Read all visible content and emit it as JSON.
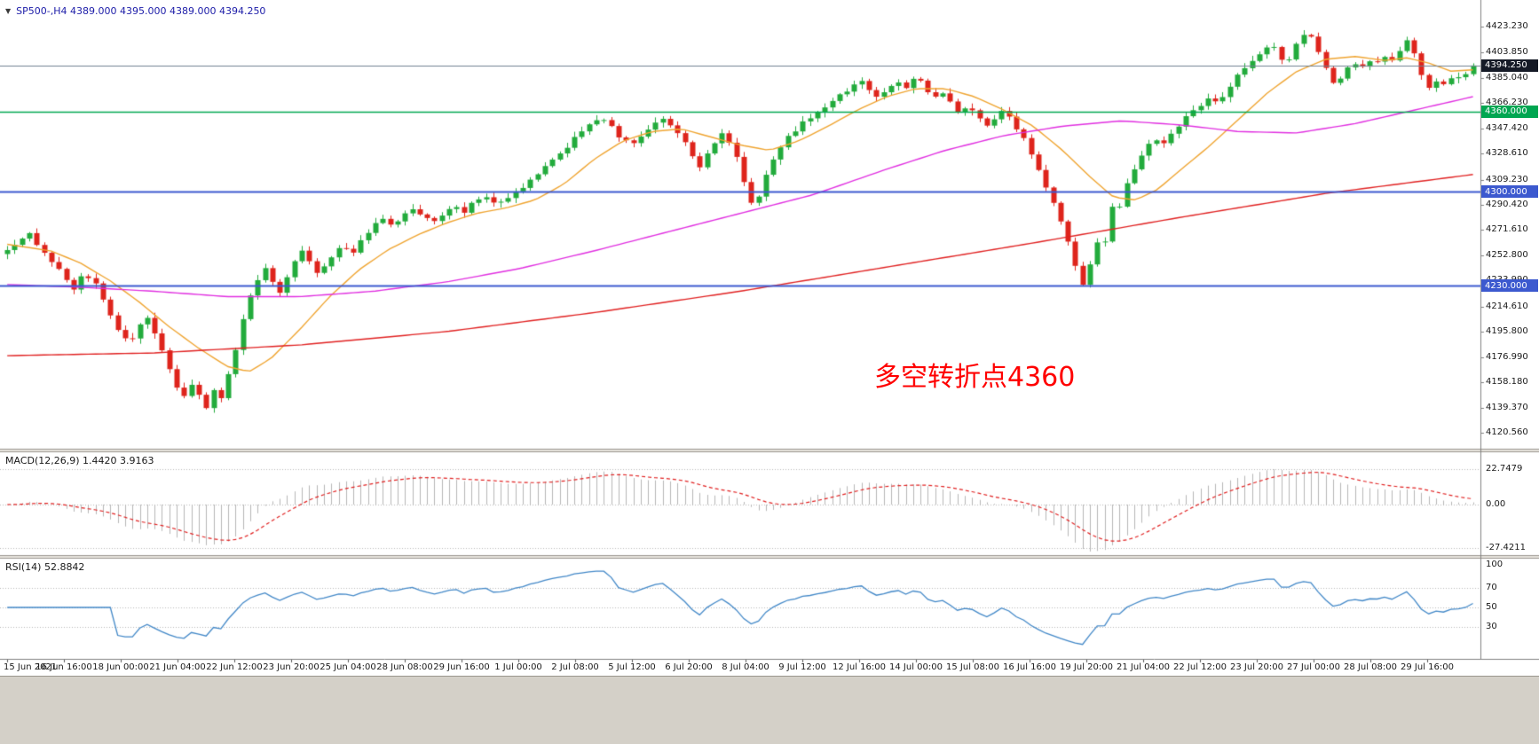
{
  "header": {
    "symbol_info": "SP500-,H4 4389.000 4395.000 4389.000 4394.250",
    "color": "#1c1ca8"
  },
  "annotation": {
    "text": "多空转折点4360",
    "color": "#ff0000"
  },
  "colors": {
    "bottom_bar": "#d4d0c8",
    "axis_text": "#1a1a1a",
    "grid": "#b8b8b8",
    "panel_divider": "#9a968e"
  },
  "chart_data": {
    "type": "candlestick",
    "symbol": "SP500-",
    "timeframe": "H4",
    "last": {
      "o": 4389.0,
      "h": 4395.0,
      "l": 4389.0,
      "c": 4394.25
    },
    "bars": 200,
    "up_color": "#22ab3c",
    "down_color": "#de241c",
    "y_ticks": [
      "4423.230",
      "4403.850",
      "4385.040",
      "4366.230",
      "4347.420",
      "4328.610",
      "4309.230",
      "4290.420",
      "4271.610",
      "4252.800",
      "4233.990",
      "4214.610",
      "4195.800",
      "4176.990",
      "4158.180",
      "4139.370",
      "4120.560"
    ],
    "x_labels": [
      "15 Jun 2021",
      "16 Jun 16:00",
      "18 Jun 00:00",
      "21 Jun 04:00",
      "22 Jun 12:00",
      "23 Jun 20:00",
      "25 Jun 04:00",
      "28 Jun 08:00",
      "29 Jun 16:00",
      "1 Jul 00:00",
      "2 Jul 08:00",
      "5 Jul 12:00",
      "6 Jul 20:00",
      "8 Jul 04:00",
      "9 Jul 12:00",
      "12 Jul 16:00",
      "14 Jul 00:00",
      "15 Jul 08:00",
      "16 Jul 16:00",
      "19 Jul 20:00",
      "21 Jul 04:00",
      "22 Jul 12:00",
      "23 Jul 20:00",
      "27 Jul 00:00",
      "28 Jul 08:00",
      "29 Jul 16:00"
    ],
    "horizontal_lines": [
      {
        "label": "4394.250",
        "value": 4394.25,
        "color": "#708090",
        "width": 1,
        "badge_bg": "#151a26",
        "badge_fg": "#ffffff"
      },
      {
        "label": "4360.000",
        "value": 4360.0,
        "color": "#00a651",
        "width": 1.4,
        "badge_bg": "#00a651",
        "badge_fg": "#ffffff"
      },
      {
        "label": "4300.000",
        "value": 4300.0,
        "color": "#3c59cf",
        "width": 2,
        "badge_bg": "#3c59cf",
        "badge_fg": "#ffffff"
      },
      {
        "label": "4230.000",
        "value": 4230.0,
        "color": "#3c59cf",
        "width": 2,
        "badge_bg": "#3c59cf",
        "badge_fg": "#ffffff"
      }
    ],
    "close_path": [
      [
        0.0,
        4258
      ],
      [
        0.005,
        4260
      ],
      [
        0.015,
        4268
      ],
      [
        0.025,
        4256
      ],
      [
        0.035,
        4242
      ],
      [
        0.045,
        4228
      ],
      [
        0.052,
        4240
      ],
      [
        0.06,
        4231
      ],
      [
        0.068,
        4214
      ],
      [
        0.076,
        4196
      ],
      [
        0.083,
        4188
      ],
      [
        0.089,
        4198
      ],
      [
        0.095,
        4206
      ],
      [
        0.1,
        4196
      ],
      [
        0.105,
        4182
      ],
      [
        0.11,
        4168
      ],
      [
        0.116,
        4154
      ],
      [
        0.121,
        4147
      ],
      [
        0.126,
        4158
      ],
      [
        0.131,
        4148
      ],
      [
        0.136,
        4138
      ],
      [
        0.141,
        4152
      ],
      [
        0.145,
        4142
      ],
      [
        0.15,
        4162
      ],
      [
        0.156,
        4184
      ],
      [
        0.161,
        4206
      ],
      [
        0.166,
        4224
      ],
      [
        0.171,
        4234
      ],
      [
        0.176,
        4242
      ],
      [
        0.181,
        4233
      ],
      [
        0.186,
        4225
      ],
      [
        0.191,
        4238
      ],
      [
        0.196,
        4248
      ],
      [
        0.201,
        4255
      ],
      [
        0.206,
        4247
      ],
      [
        0.211,
        4239
      ],
      [
        0.217,
        4247
      ],
      [
        0.223,
        4255
      ],
      [
        0.228,
        4261
      ],
      [
        0.234,
        4253
      ],
      [
        0.241,
        4263
      ],
      [
        0.248,
        4273
      ],
      [
        0.255,
        4281
      ],
      [
        0.262,
        4275
      ],
      [
        0.269,
        4281
      ],
      [
        0.276,
        4288
      ],
      [
        0.283,
        4282
      ],
      [
        0.29,
        4277
      ],
      [
        0.297,
        4284
      ],
      [
        0.304,
        4290
      ],
      [
        0.311,
        4285
      ],
      [
        0.318,
        4292
      ],
      [
        0.326,
        4296
      ],
      [
        0.335,
        4290
      ],
      [
        0.344,
        4297
      ],
      [
        0.353,
        4305
      ],
      [
        0.362,
        4313
      ],
      [
        0.371,
        4322
      ],
      [
        0.38,
        4332
      ],
      [
        0.389,
        4343
      ],
      [
        0.397,
        4351
      ],
      [
        0.404,
        4356
      ],
      [
        0.411,
        4349
      ],
      [
        0.418,
        4340
      ],
      [
        0.425,
        4335
      ],
      [
        0.432,
        4342
      ],
      [
        0.439,
        4349
      ],
      [
        0.446,
        4354
      ],
      [
        0.453,
        4349
      ],
      [
        0.46,
        4341
      ],
      [
        0.466,
        4329
      ],
      [
        0.471,
        4317
      ],
      [
        0.476,
        4325
      ],
      [
        0.482,
        4336
      ],
      [
        0.488,
        4343
      ],
      [
        0.494,
        4335
      ],
      [
        0.5,
        4318
      ],
      [
        0.505,
        4296
      ],
      [
        0.509,
        4288
      ],
      [
        0.514,
        4302
      ],
      [
        0.52,
        4318
      ],
      [
        0.526,
        4331
      ],
      [
        0.533,
        4341
      ],
      [
        0.54,
        4349
      ],
      [
        0.547,
        4355
      ],
      [
        0.554,
        4361
      ],
      [
        0.561,
        4367
      ],
      [
        0.568,
        4372
      ],
      [
        0.576,
        4378
      ],
      [
        0.583,
        4383
      ],
      [
        0.589,
        4376
      ],
      [
        0.595,
        4369
      ],
      [
        0.601,
        4377
      ],
      [
        0.607,
        4383
      ],
      [
        0.613,
        4377
      ],
      [
        0.62,
        4387
      ],
      [
        0.626,
        4379
      ],
      [
        0.632,
        4369
      ],
      [
        0.638,
        4374
      ],
      [
        0.644,
        4366
      ],
      [
        0.65,
        4357
      ],
      [
        0.656,
        4364
      ],
      [
        0.662,
        4357
      ],
      [
        0.668,
        4349
      ],
      [
        0.674,
        4356
      ],
      [
        0.68,
        4361
      ],
      [
        0.686,
        4352
      ],
      [
        0.692,
        4342
      ],
      [
        0.698,
        4330
      ],
      [
        0.704,
        4316
      ],
      [
        0.71,
        4300
      ],
      [
        0.716,
        4285
      ],
      [
        0.721,
        4270
      ],
      [
        0.726,
        4254
      ],
      [
        0.731,
        4238
      ],
      [
        0.735,
        4229
      ],
      [
        0.739,
        4248
      ],
      [
        0.743,
        4264
      ],
      [
        0.747,
        4252
      ],
      [
        0.751,
        4278
      ],
      [
        0.755,
        4296
      ],
      [
        0.759,
        4288
      ],
      [
        0.764,
        4308
      ],
      [
        0.77,
        4320
      ],
      [
        0.776,
        4331
      ],
      [
        0.782,
        4340
      ],
      [
        0.788,
        4334
      ],
      [
        0.794,
        4344
      ],
      [
        0.8,
        4351
      ],
      [
        0.807,
        4358
      ],
      [
        0.814,
        4365
      ],
      [
        0.82,
        4372
      ],
      [
        0.826,
        4366
      ],
      [
        0.832,
        4377
      ],
      [
        0.838,
        4385
      ],
      [
        0.844,
        4392
      ],
      [
        0.85,
        4398
      ],
      [
        0.856,
        4404
      ],
      [
        0.862,
        4410
      ],
      [
        0.867,
        4404
      ],
      [
        0.872,
        4394
      ],
      [
        0.877,
        4406
      ],
      [
        0.882,
        4414
      ],
      [
        0.887,
        4419
      ],
      [
        0.892,
        4410
      ],
      [
        0.897,
        4398
      ],
      [
        0.902,
        4385
      ],
      [
        0.907,
        4379
      ],
      [
        0.912,
        4391
      ],
      [
        0.918,
        4397
      ],
      [
        0.924,
        4393
      ],
      [
        0.93,
        4399
      ],
      [
        0.936,
        4395
      ],
      [
        0.941,
        4403
      ],
      [
        0.946,
        4397
      ],
      [
        0.951,
        4406
      ],
      [
        0.956,
        4417
      ],
      [
        0.961,
        4399
      ],
      [
        0.966,
        4383
      ],
      [
        0.971,
        4375
      ],
      [
        0.976,
        4384
      ],
      [
        0.981,
        4379
      ],
      [
        0.986,
        4387
      ],
      [
        0.991,
        4385
      ],
      [
        0.996,
        4390
      ],
      [
        1.0,
        4394.25
      ]
    ],
    "moving_averages": [
      {
        "name": "ma-fast-orange",
        "color": "#efa430",
        "path": [
          [
            0,
            4261
          ],
          [
            0.03,
            4256
          ],
          [
            0.05,
            4247
          ],
          [
            0.07,
            4234
          ],
          [
            0.09,
            4218
          ],
          [
            0.11,
            4200
          ],
          [
            0.13,
            4184
          ],
          [
            0.15,
            4170
          ],
          [
            0.165,
            4166
          ],
          [
            0.18,
            4176
          ],
          [
            0.2,
            4198
          ],
          [
            0.22,
            4222
          ],
          [
            0.24,
            4242
          ],
          [
            0.26,
            4257
          ],
          [
            0.28,
            4268
          ],
          [
            0.3,
            4277
          ],
          [
            0.32,
            4284
          ],
          [
            0.34,
            4288
          ],
          [
            0.36,
            4294
          ],
          [
            0.38,
            4306
          ],
          [
            0.4,
            4324
          ],
          [
            0.42,
            4338
          ],
          [
            0.44,
            4345
          ],
          [
            0.46,
            4347
          ],
          [
            0.48,
            4341
          ],
          [
            0.5,
            4335
          ],
          [
            0.52,
            4331
          ],
          [
            0.54,
            4338
          ],
          [
            0.56,
            4349
          ],
          [
            0.58,
            4361
          ],
          [
            0.6,
            4371
          ],
          [
            0.62,
            4377
          ],
          [
            0.64,
            4377
          ],
          [
            0.66,
            4371
          ],
          [
            0.68,
            4361
          ],
          [
            0.7,
            4349
          ],
          [
            0.72,
            4331
          ],
          [
            0.74,
            4310
          ],
          [
            0.755,
            4296
          ],
          [
            0.77,
            4294
          ],
          [
            0.785,
            4302
          ],
          [
            0.8,
            4316
          ],
          [
            0.82,
            4334
          ],
          [
            0.84,
            4354
          ],
          [
            0.86,
            4374
          ],
          [
            0.88,
            4390
          ],
          [
            0.9,
            4399
          ],
          [
            0.92,
            4401
          ],
          [
            0.94,
            4398
          ],
          [
            0.955,
            4400
          ],
          [
            0.97,
            4396
          ],
          [
            0.985,
            4390
          ],
          [
            1,
            4391
          ]
        ]
      },
      {
        "name": "ma-medium-magenta",
        "color": "#e02ee0",
        "path": [
          [
            0,
            4231
          ],
          [
            0.05,
            4229
          ],
          [
            0.1,
            4226
          ],
          [
            0.15,
            4222
          ],
          [
            0.2,
            4222
          ],
          [
            0.25,
            4226
          ],
          [
            0.3,
            4233
          ],
          [
            0.35,
            4243
          ],
          [
            0.4,
            4256
          ],
          [
            0.45,
            4270
          ],
          [
            0.5,
            4284
          ],
          [
            0.55,
            4298
          ],
          [
            0.6,
            4317
          ],
          [
            0.64,
            4331
          ],
          [
            0.68,
            4342
          ],
          [
            0.72,
            4349
          ],
          [
            0.76,
            4353
          ],
          [
            0.8,
            4350
          ],
          [
            0.84,
            4345
          ],
          [
            0.88,
            4344
          ],
          [
            0.92,
            4351
          ],
          [
            0.96,
            4361
          ],
          [
            1,
            4371
          ]
        ]
      },
      {
        "name": "ma-slow-red",
        "color": "#e02020",
        "path": [
          [
            0,
            4178
          ],
          [
            0.1,
            4180
          ],
          [
            0.2,
            4186
          ],
          [
            0.3,
            4196
          ],
          [
            0.4,
            4210
          ],
          [
            0.5,
            4226
          ],
          [
            0.6,
            4244
          ],
          [
            0.7,
            4262
          ],
          [
            0.8,
            4281
          ],
          [
            0.9,
            4299
          ],
          [
            1,
            4313
          ]
        ]
      }
    ],
    "macd": {
      "label": "MACD(12,26,9) 1.4420 3.9163",
      "params": [
        12,
        26,
        9
      ],
      "values": [
        1.442,
        3.9163
      ],
      "ticks": [
        "22.7479",
        "0.00",
        "-27.4211"
      ],
      "histogram_color": "#b6b6b6",
      "signal_color": "#e02020"
    },
    "rsi": {
      "label": "RSI(14) 52.8842",
      "period": 14,
      "value": 52.8842,
      "ticks": [
        "100",
        "70",
        "50",
        "30"
      ],
      "levels": [
        70,
        50,
        30
      ],
      "line_color": "#4187c7"
    }
  }
}
